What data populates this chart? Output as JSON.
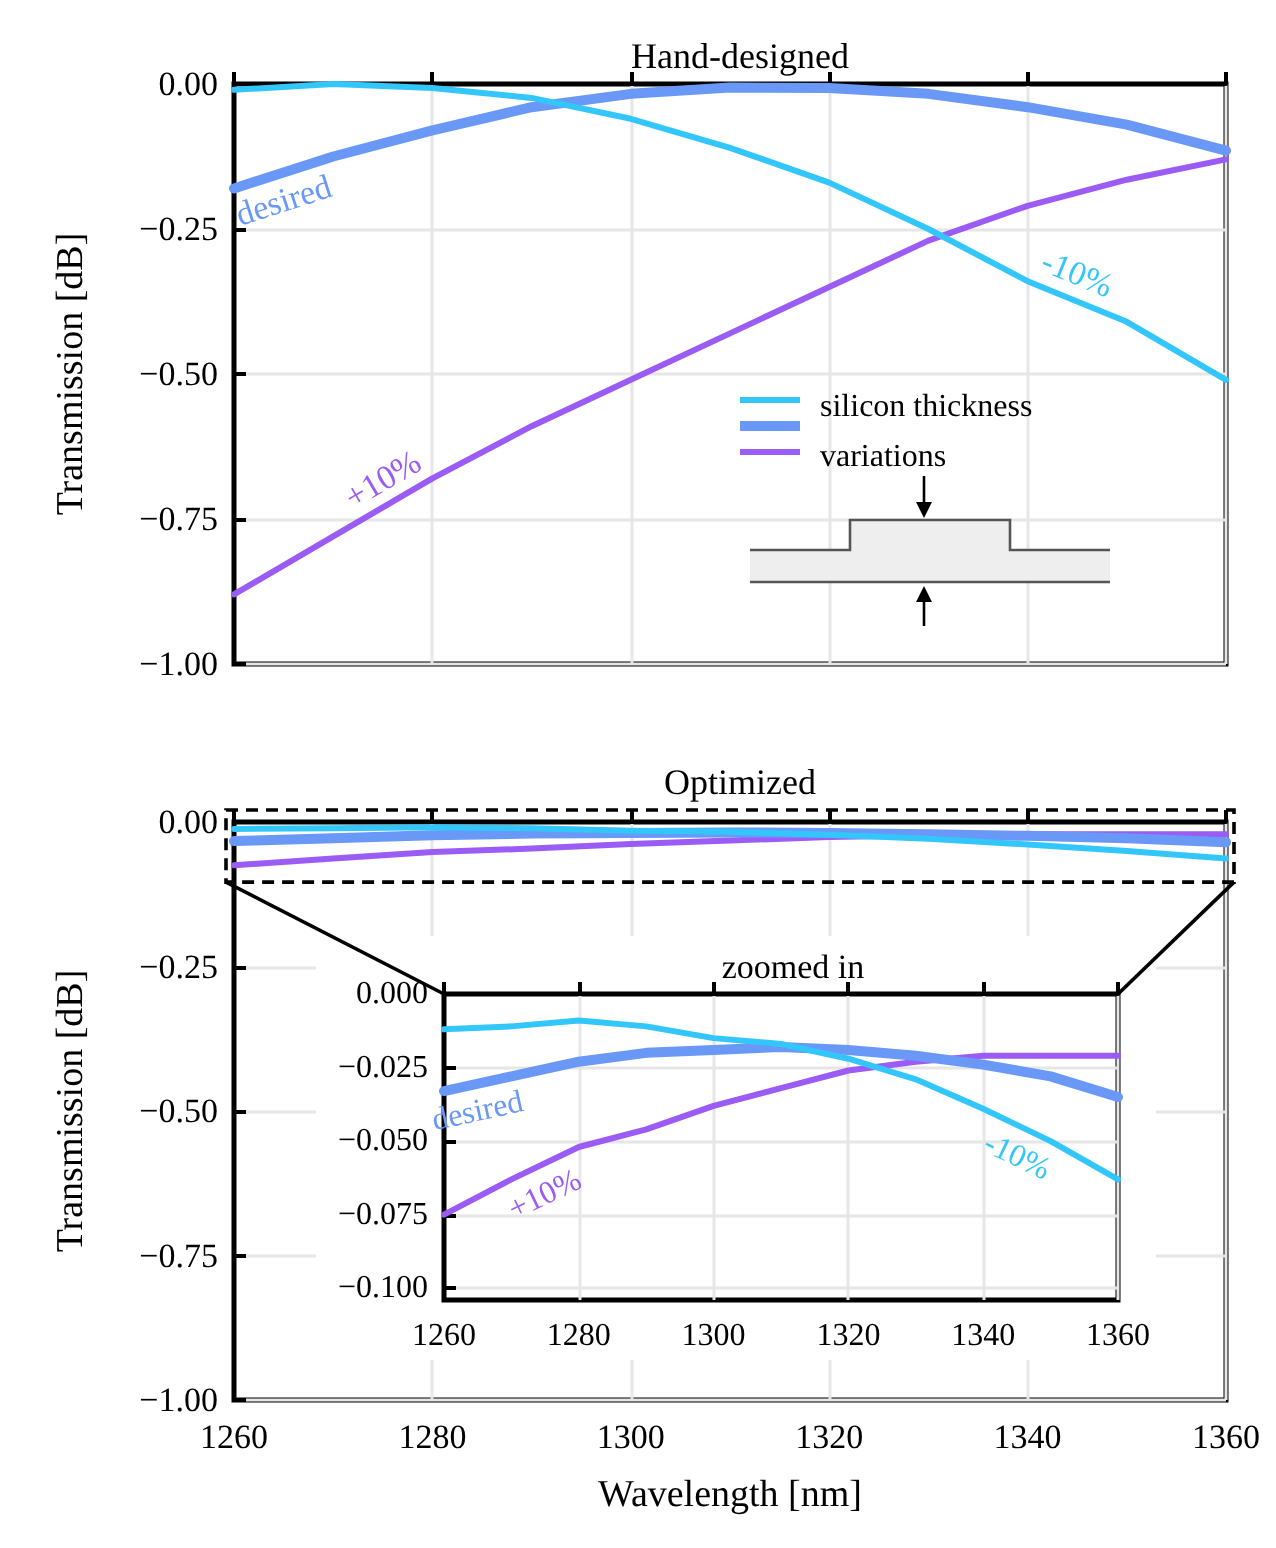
{
  "chart_data": [
    {
      "type": "line",
      "title": "Hand-designed",
      "ylabel": "Transmission [dB]",
      "annotations": [
        "silicon thickness variations"
      ],
      "grid": true,
      "tick_labels": "y",
      "x": [
        1260,
        1270,
        1280,
        1290,
        1300,
        1310,
        1320,
        1330,
        1340,
        1350,
        1360
      ],
      "xlim": [
        1260,
        1360
      ],
      "xticks": [
        1260,
        1280,
        1300,
        1320,
        1340,
        1360
      ],
      "ylim": [
        -1,
        0
      ],
      "yticks": [
        {
          "value": 0,
          "label": "0.00"
        },
        {
          "value": -0.25,
          "label": "−0.25"
        },
        {
          "value": -0.5,
          "label": "−0.50"
        },
        {
          "value": -0.75,
          "label": "−0.75"
        },
        {
          "value": -1,
          "label": "−1.00"
        }
      ],
      "series": [
        {
          "name": "-10%",
          "color": "#33c6fb",
          "values": [
            -0.01,
            0,
            -0.007,
            -0.024,
            -0.06,
            -0.11,
            -0.17,
            -0.25,
            -0.34,
            -0.41,
            -0.51
          ]
        },
        {
          "name": "desired",
          "color": "#6a98f7",
          "values": [
            -0.18,
            -0.125,
            -0.08,
            -0.04,
            -0.017,
            -0.006,
            -0.007,
            -0.017,
            -0.04,
            -0.07,
            -0.115
          ]
        },
        {
          "name": "+10%",
          "color": "#9a5cf5",
          "values": [
            -0.88,
            -0.78,
            -0.68,
            -0.59,
            -0.51,
            -0.43,
            -0.35,
            -0.27,
            -0.21,
            -0.165,
            -0.13
          ]
        }
      ]
    },
    {
      "type": "line",
      "title": "Optimized",
      "ylabel": "Transmission [dB]",
      "xlabel": "Wavelength [nm]",
      "grid": true,
      "x": [
        1260,
        1270,
        1280,
        1290,
        1300,
        1310,
        1320,
        1330,
        1340,
        1350,
        1360
      ],
      "xlim": [
        1260,
        1360
      ],
      "xticks": [
        1260,
        1280,
        1300,
        1320,
        1340,
        1360
      ],
      "ylim": [
        -1,
        0
      ],
      "yticks": [
        {
          "value": 0,
          "label": "0.00"
        },
        {
          "value": -0.25,
          "label": "−0.25"
        },
        {
          "value": -0.5,
          "label": "−0.50"
        },
        {
          "value": -0.75,
          "label": "−0.75"
        },
        {
          "value": -1,
          "label": "−1.00"
        }
      ],
      "series": [
        {
          "color": "#33c6fb",
          "values": [
            -0.012,
            -0.011,
            -0.009,
            -0.011,
            -0.015,
            -0.017,
            -0.022,
            -0.029,
            -0.039,
            -0.05,
            -0.063
          ]
        },
        {
          "color": "#6a98f7",
          "values": [
            -0.033,
            -0.028,
            -0.023,
            -0.02,
            -0.019,
            -0.018,
            -0.019,
            -0.021,
            -0.024,
            -0.028,
            -0.035
          ]
        },
        {
          "color": "#9a5cf5",
          "values": [
            -0.075,
            -0.063,
            -0.052,
            -0.046,
            -0.038,
            -0.032,
            -0.026,
            -0.023,
            -0.021,
            -0.021,
            -0.021
          ]
        }
      ]
    },
    {
      "type": "line",
      "title": "zoomed in",
      "grid": true,
      "x": [
        1260,
        1270,
        1280,
        1290,
        1300,
        1310,
        1320,
        1330,
        1340,
        1350,
        1360
      ],
      "xlim": [
        1260,
        1360
      ],
      "xticks": [
        1260,
        1280,
        1300,
        1320,
        1340,
        1360
      ],
      "ylim": [
        -0.104,
        0
      ],
      "yticks": [
        {
          "value": 0,
          "label": "0.000"
        },
        {
          "value": -0.025,
          "label": "−0.025"
        },
        {
          "value": -0.05,
          "label": "−0.050"
        },
        {
          "value": -0.075,
          "label": "−0.075"
        },
        {
          "value": -0.1,
          "label": "−0.100"
        }
      ],
      "series": [
        {
          "name": "-10%",
          "color": "#33c6fb",
          "values": [
            -0.012,
            -0.011,
            -0.009,
            -0.011,
            -0.015,
            -0.017,
            -0.022,
            -0.029,
            -0.039,
            -0.05,
            -0.063
          ]
        },
        {
          "name": "desired",
          "color": "#6a98f7",
          "values": [
            -0.033,
            -0.028,
            -0.023,
            -0.02,
            -0.019,
            -0.018,
            -0.019,
            -0.021,
            -0.024,
            -0.028,
            -0.035
          ]
        },
        {
          "name": "+10%",
          "color": "#9a5cf5",
          "values": [
            -0.075,
            -0.063,
            -0.052,
            -0.046,
            -0.038,
            -0.032,
            -0.026,
            -0.023,
            -0.021,
            -0.021,
            -0.021
          ]
        }
      ]
    }
  ]
}
